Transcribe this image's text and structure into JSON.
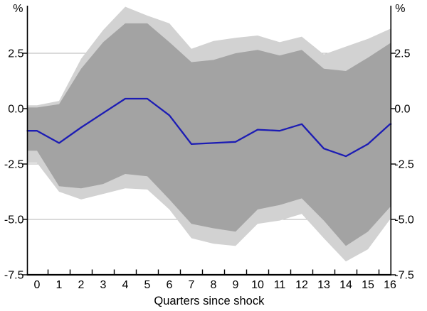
{
  "chart_data": {
    "type": "area",
    "subtype": "fan-chart-impulse-response",
    "title": "",
    "xlabel": "Quarters since shock",
    "ylabel_left": "%",
    "ylabel_right": "%",
    "x": [
      0,
      1,
      2,
      3,
      4,
      5,
      6,
      7,
      8,
      9,
      10,
      11,
      12,
      13,
      14,
      15,
      16
    ],
    "x_tick_labels": [
      "0",
      "1",
      "2",
      "3",
      "4",
      "5",
      "6",
      "7",
      "8",
      "9",
      "10",
      "11",
      "12",
      "13",
      "14",
      "15",
      "16"
    ],
    "x_tick_marks_between_labels": true,
    "y_ticks": [
      2.5,
      0.0,
      -2.5,
      -5.0,
      -7.5
    ],
    "y_tick_labels": [
      "2.5",
      "0.0",
      "-2.5",
      "-5.0",
      "-7.5"
    ],
    "y_gridlines": [
      2.5,
      0.0,
      -2.5,
      -5.0
    ],
    "ylim": [
      -7.5,
      4.65
    ],
    "grid": "horizontal",
    "legend": "none",
    "series": [
      {
        "name": "outer-confidence-band",
        "kind": "band",
        "color": "#d2d2d2",
        "upper": [
          0.15,
          0.35,
          2.25,
          3.55,
          4.6,
          4.2,
          3.85,
          2.7,
          3.05,
          3.2,
          3.3,
          3.0,
          3.25,
          2.45,
          2.8,
          3.15,
          3.6
        ],
        "lower": [
          -2.45,
          -3.75,
          -4.1,
          -3.85,
          -3.6,
          -3.65,
          -4.55,
          -5.85,
          -6.1,
          -6.2,
          -5.2,
          -5.05,
          -4.75,
          -5.85,
          -6.9,
          -6.35,
          -5.0
        ]
      },
      {
        "name": "inner-confidence-band",
        "kind": "band",
        "color": "#a3a3a3",
        "upper": [
          0.05,
          0.2,
          1.8,
          3.0,
          3.85,
          3.85,
          3.0,
          2.1,
          2.2,
          2.5,
          2.65,
          2.4,
          2.65,
          1.8,
          1.7,
          2.3,
          2.95
        ],
        "lower": [
          -1.9,
          -3.5,
          -3.6,
          -3.4,
          -2.95,
          -3.05,
          -4.1,
          -5.2,
          -5.4,
          -5.55,
          -4.55,
          -4.35,
          -4.05,
          -5.05,
          -6.2,
          -5.55,
          -4.45
        ]
      },
      {
        "name": "median-response",
        "kind": "line",
        "color": "#1c1cb4",
        "values": [
          -1.0,
          -1.55,
          -0.85,
          -0.2,
          0.45,
          0.45,
          -0.3,
          -1.6,
          -1.55,
          -1.5,
          -0.95,
          -1.0,
          -0.7,
          -1.8,
          -2.15,
          -1.6,
          -0.7
        ]
      }
    ],
    "colors": {
      "background": "#ffffff",
      "gridline": "#b5b5b5",
      "axis": "#000000",
      "outer_band": "#d2d2d2",
      "inner_band": "#a3a3a3",
      "line": "#1c1cb4"
    }
  }
}
